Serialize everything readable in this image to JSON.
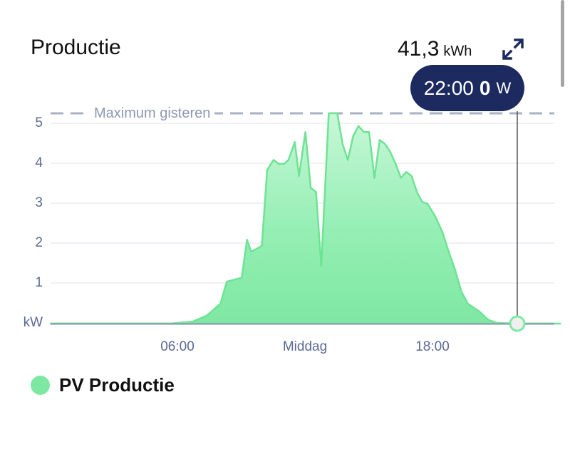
{
  "header": {
    "title": "Productie",
    "total_value": "41,3",
    "total_unit": "kWh",
    "expand_icon": "expand-arrows-icon"
  },
  "tooltip": {
    "time": "22:00",
    "value": "0",
    "unit": "W"
  },
  "reference_line": {
    "label": "Maximum gisteren",
    "value_kw": 5.27
  },
  "legend": [
    {
      "label": "PV Productie",
      "color": "#7ee8a2"
    }
  ],
  "colors": {
    "series": "#7ee8a2",
    "series_line": "#6ee394",
    "tooltip_bg": "#1c2a60",
    "axis_text": "#5b6a94",
    "reference": "#a9b0c6"
  },
  "chart_data": {
    "type": "area",
    "title": "Productie",
    "xlabel": "",
    "ylabel": "kW",
    "ylim": [
      0,
      5.3
    ],
    "xlim": [
      "00:00",
      "24:00"
    ],
    "grid": true,
    "legend_position": "bottom-left",
    "y_ticks": [
      "kW",
      "1",
      "2",
      "3",
      "4",
      "5"
    ],
    "x_ticks": [
      "06:00",
      "Middag",
      "18:00"
    ],
    "annotations": [
      {
        "type": "hline",
        "label": "Maximum gisteren",
        "y": 5.27,
        "style": "dashed"
      },
      {
        "type": "crosshair",
        "x": "22:00",
        "y": 0,
        "label": "22:00 0 W"
      }
    ],
    "series": [
      {
        "name": "PV Productie",
        "x_hours": [
          0,
          5.6,
          6.7,
          7.35,
          8.0,
          8.0,
          8.3,
          9.0,
          9.25,
          9.45,
          9.95,
          10.2,
          10.5,
          10.75,
          11.0,
          11.2,
          11.5,
          11.7,
          12.0,
          12.25,
          12.5,
          12.75,
          13.1,
          13.5,
          13.75,
          14.0,
          14.25,
          14.5,
          14.75,
          15.0,
          15.25,
          15.5,
          15.75,
          16.0,
          16.25,
          16.5,
          16.75,
          17.0,
          17.25,
          17.5,
          17.75,
          18.1,
          18.45,
          18.75,
          19.05,
          19.35,
          19.65,
          20.2,
          20.6,
          21.0,
          22.0,
          24.0
        ],
        "values_kw": [
          0,
          0,
          0.05,
          0.2,
          0.5,
          0.5,
          1.05,
          1.15,
          2.1,
          1.8,
          1.95,
          3.85,
          4.1,
          4.0,
          4.0,
          4.1,
          4.55,
          3.7,
          4.8,
          3.4,
          3.3,
          1.45,
          5.27,
          5.27,
          4.5,
          4.1,
          4.7,
          4.95,
          4.8,
          4.8,
          3.65,
          4.6,
          4.5,
          4.3,
          4.0,
          3.65,
          3.8,
          3.7,
          3.3,
          3.05,
          3.0,
          2.7,
          2.3,
          1.8,
          1.35,
          0.8,
          0.5,
          0.3,
          0.1,
          0.02,
          0,
          0
        ]
      }
    ]
  }
}
